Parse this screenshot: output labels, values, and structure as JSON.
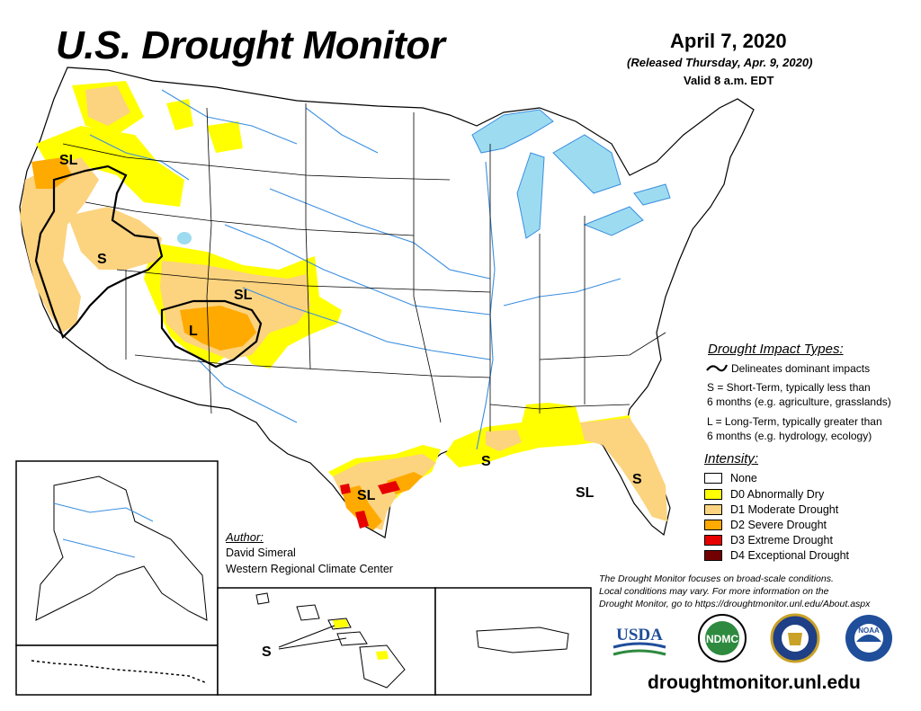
{
  "header": {
    "title": "U.S. Drought Monitor",
    "date": "April 7, 2020",
    "released": "(Released Thursday, Apr. 9, 2020)",
    "valid": "Valid 8 a.m. EDT"
  },
  "map_labels": {
    "sl_northwest": "SL",
    "s_nevada": "S",
    "sl_colorado": "SL",
    "l_southwest": "L",
    "sl_texas": "SL",
    "s_gulf": "S",
    "sl_florida_panhandle": "SL",
    "s_florida": "S",
    "s_hawaii": "S"
  },
  "impact_types": {
    "title": "Drought Impact Types:",
    "delineates": "Delineates dominant impacts",
    "short_term_1": "S = Short-Term, typically less than",
    "short_term_2": "6 months (e.g. agriculture, grasslands)",
    "long_term_1": "L = Long-Term, typically greater than",
    "long_term_2": "6 months (e.g. hydrology, ecology)"
  },
  "intensity": {
    "title": "Intensity:",
    "levels": [
      {
        "label": "None",
        "color": "#ffffff"
      },
      {
        "label": "D0 Abnormally Dry",
        "color": "#ffff00"
      },
      {
        "label": "D1 Moderate Drought",
        "color": "#fcd37f"
      },
      {
        "label": "D2 Severe Drought",
        "color": "#ffaa00"
      },
      {
        "label": "D3 Extreme Drought",
        "color": "#e60000"
      },
      {
        "label": "D4 Exceptional Drought",
        "color": "#730000"
      }
    ]
  },
  "author": {
    "title": "Author:",
    "name": "David Simeral",
    "org": "Western Regional Climate Center"
  },
  "note": {
    "line1": "The Drought Monitor focuses on broad-scale conditions.",
    "line2": "Local conditions may vary. For more information on the",
    "line3": "Drought Monitor, go to https://droughtmonitor.unl.edu/About.aspx"
  },
  "logos": {
    "usda": "USDA",
    "ndmc": "NDMC",
    "noaa": "NOAA"
  },
  "website": "droughtmonitor.unl.edu",
  "colors": {
    "water": "#9ddcf0",
    "river": "#3a8ee0",
    "d0": "#ffff00",
    "d1": "#fcd37f",
    "d2": "#ffaa00",
    "d3": "#e60000",
    "d4": "#730000"
  }
}
